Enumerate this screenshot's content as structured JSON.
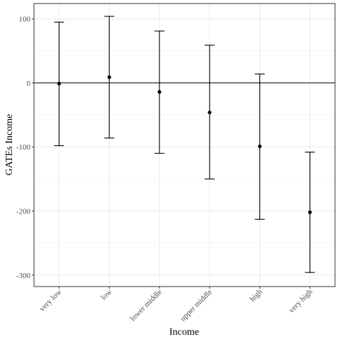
{
  "chart_data": {
    "type": "errorbar",
    "title": "",
    "xlabel": "Income",
    "ylabel": "GATEs Income",
    "categories": [
      "very low",
      "low",
      "lower middle",
      "upper middle",
      "high",
      "very high"
    ],
    "estimates": [
      -1,
      9,
      -14,
      -46,
      -99,
      -202
    ],
    "lower": [
      -98,
      -86,
      -110,
      -150,
      -213,
      -296
    ],
    "upper": [
      95,
      104,
      81,
      59,
      14,
      -108
    ],
    "ylim": [
      -318,
      124
    ],
    "yticks": [
      100,
      0,
      -100,
      -200,
      -300
    ],
    "reference_line": 0,
    "grid": true,
    "legend": "none",
    "colors": {
      "points": "#000000",
      "errorbars": "#000000",
      "reference_line": "#000000",
      "grid": "#ebebeb",
      "panel_border": "#333333",
      "tick_labels": "#4d4d4d"
    }
  }
}
